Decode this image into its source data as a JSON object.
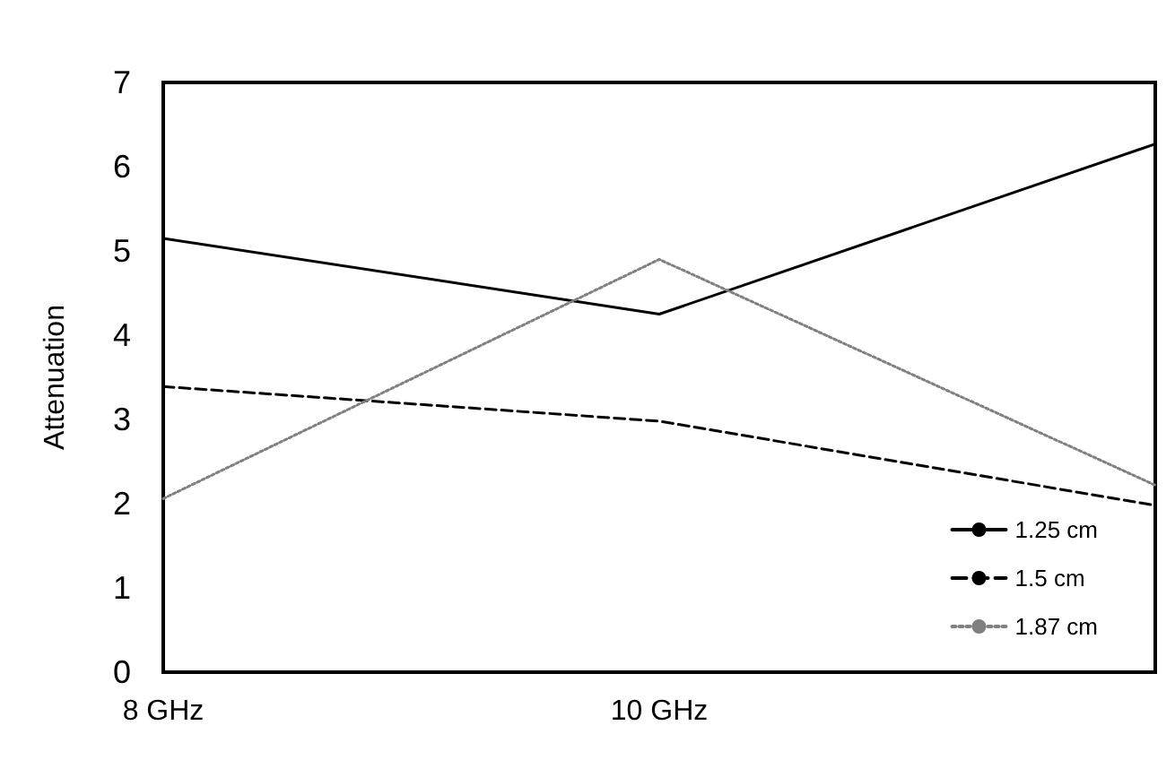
{
  "chart_data": {
    "type": "line",
    "ylabel": "Attenuation",
    "categories": [
      "8 GHz",
      "10 GHz",
      null
    ],
    "series": [
      {
        "name": "1.25 cm",
        "color": "#000000",
        "line_style": "solid",
        "values": [
          5.15,
          4.25,
          6.27
        ]
      },
      {
        "name": "1.5 cm",
        "color": "#000000",
        "line_style": "dashed",
        "values": [
          3.39,
          2.98,
          1.98
        ]
      },
      {
        "name": "1.87 cm",
        "color": "#808080",
        "line_style": "dotted",
        "values": [
          2.06,
          4.9,
          2.22
        ]
      }
    ],
    "ylim": [
      0,
      7
    ],
    "yticks": [
      0,
      1,
      2,
      3,
      4,
      5,
      6,
      7
    ],
    "grid": false,
    "legend": "bottom right",
    "marker": "none"
  }
}
